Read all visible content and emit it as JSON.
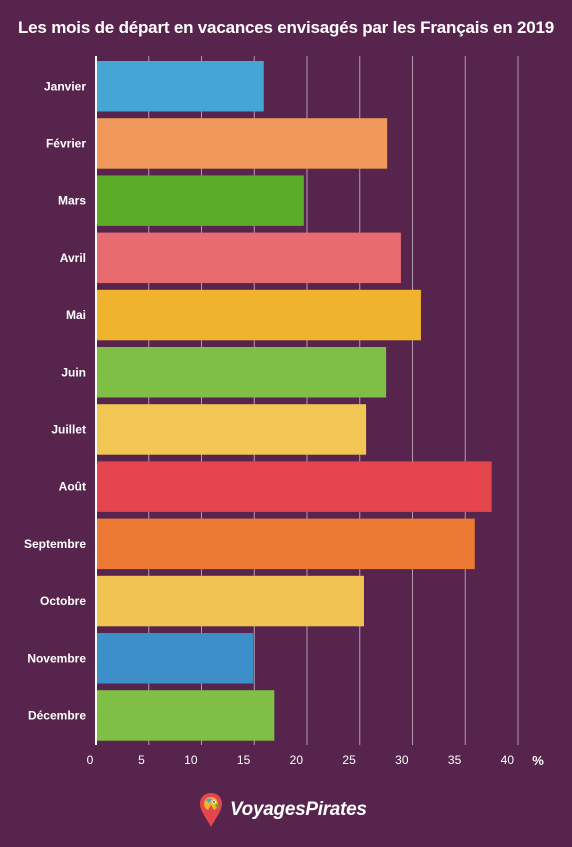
{
  "chart_data": {
    "type": "bar",
    "orientation": "horizontal",
    "title": "Les mois de départ en vacances envisagés par les Français en 2019",
    "xlabel": "",
    "ylabel": "",
    "unit": "%",
    "xlim": [
      0,
      42
    ],
    "xticks": [
      0,
      5,
      10,
      15,
      20,
      25,
      30,
      35,
      40
    ],
    "grid": true,
    "categories": [
      "Janvier",
      "Février",
      "Mars",
      "Avril",
      "Mai",
      "Juin",
      "Juillet",
      "Août",
      "Septembre",
      "Octobre",
      "Novembre",
      "Décembre"
    ],
    "values": [
      15.9,
      27.6,
      19.7,
      28.9,
      30.8,
      27.5,
      25.6,
      37.5,
      35.9,
      25.4,
      14.9,
      16.9
    ],
    "colors": [
      "#45a5d4",
      "#ef9859",
      "#5aab25",
      "#e86b70",
      "#f0b32e",
      "#7fbf46",
      "#f2c653",
      "#e5464d",
      "#ec7a34",
      "#f1c452",
      "#3c8fc8",
      "#7fbf46"
    ]
  },
  "brand": {
    "name": "VoyagesPirates",
    "icon": "parrot-icon"
  }
}
